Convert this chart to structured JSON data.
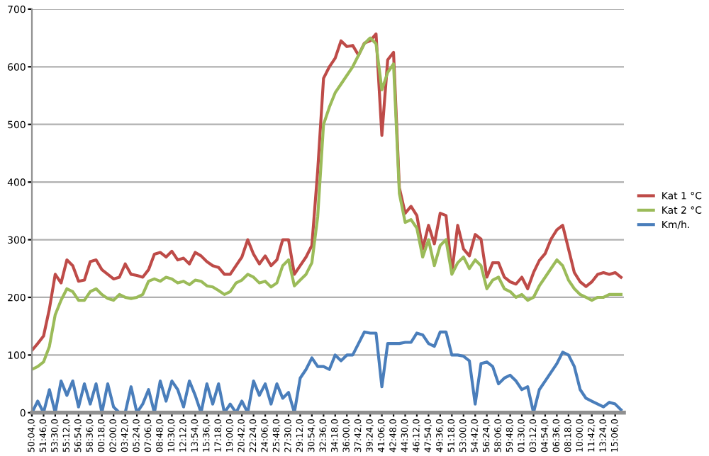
{
  "chart_data": {
    "type": "line",
    "categories": [
      "50:04,0",
      null,
      "51:46,0",
      null,
      "53:30,0",
      null,
      "55:12,0",
      null,
      "56:54,0",
      null,
      "58:36,0",
      null,
      "00:18,0",
      null,
      "02:00,0",
      null,
      "03:42,0",
      null,
      "05:24,0",
      null,
      "07:06,0",
      null,
      "08:48,0",
      null,
      "10:30,0",
      null,
      "12:12,0",
      null,
      "13:54,0",
      null,
      "15:36,0",
      null,
      "17:18,0",
      null,
      "19:00,0",
      null,
      "20:42,0",
      null,
      "22:24,0",
      null,
      "24:06,0",
      null,
      "25:48,0",
      null,
      "27:30,0",
      null,
      "29:12,0",
      null,
      "30:54,0",
      null,
      "32:36,0",
      null,
      "34:18,0",
      null,
      "36:00,0",
      null,
      "37:42,0",
      null,
      "39:24,0",
      null,
      "41:06,0",
      null,
      "42:48,0",
      null,
      "44:30,0",
      null,
      "46:12,0",
      null,
      "47:54,0",
      null,
      "49:36,0",
      null,
      "51:18,0",
      null,
      "53:00,0",
      null,
      "54:42,0",
      null,
      "56:24,0",
      null,
      "58:06,0",
      null,
      "59:48,0",
      null,
      "01:30,0",
      null,
      "03:12,0",
      null,
      "04:54,0",
      null,
      "06:36,0",
      null,
      "08:18,0",
      null,
      "10:00,0",
      null,
      "11:42,0",
      null,
      "13:24,0",
      null,
      "15:06,0",
      null
    ],
    "series": [
      {
        "name": "Kat 1 °C",
        "color": "#be4b48",
        "values": [
          108,
          120,
          133,
          180,
          240,
          225,
          265,
          255,
          228,
          230,
          262,
          265,
          248,
          240,
          232,
          235,
          258,
          240,
          238,
          235,
          248,
          275,
          278,
          270,
          280,
          265,
          268,
          258,
          278,
          272,
          262,
          255,
          252,
          240,
          240,
          255,
          270,
          300,
          275,
          258,
          272,
          255,
          265,
          300,
          300,
          240,
          255,
          270,
          290,
          420,
          580,
          600,
          615,
          645,
          635,
          637,
          620,
          641,
          645,
          657,
          481,
          612,
          625,
          390,
          346,
          358,
          342,
          284,
          325,
          293,
          346,
          342,
          243,
          325,
          284,
          272,
          309,
          301,
          235,
          260,
          260,
          235,
          227,
          223,
          235,
          215,
          243,
          264,
          276,
          301,
          317,
          325,
          284,
          243,
          227,
          219,
          227,
          240,
          243,
          240,
          243,
          235
        ]
      },
      {
        "name": "Kat 2 °C",
        "color": "#9bbb59",
        "values": [
          75,
          80,
          88,
          115,
          170,
          195,
          215,
          210,
          195,
          195,
          210,
          215,
          205,
          198,
          195,
          205,
          200,
          198,
          200,
          205,
          228,
          232,
          228,
          235,
          232,
          225,
          228,
          222,
          230,
          228,
          220,
          218,
          212,
          205,
          210,
          225,
          230,
          240,
          235,
          225,
          228,
          218,
          225,
          255,
          265,
          220,
          230,
          240,
          260,
          340,
          500,
          530,
          555,
          570,
          585,
          600,
          620,
          640,
          650,
          640,
          560,
          590,
          605,
          380,
          330,
          335,
          320,
          270,
          300,
          255,
          290,
          300,
          240,
          260,
          270,
          250,
          265,
          255,
          215,
          230,
          235,
          215,
          210,
          200,
          205,
          195,
          200,
          220,
          235,
          250,
          265,
          255,
          230,
          215,
          205,
          200,
          195,
          200,
          200,
          205,
          205,
          205
        ]
      },
      {
        "name": "Km/h.",
        "color": "#4a7ebb",
        "values": [
          0,
          20,
          0,
          40,
          0,
          55,
          30,
          55,
          10,
          50,
          15,
          50,
          0,
          50,
          10,
          0,
          0,
          45,
          0,
          15,
          40,
          0,
          55,
          20,
          55,
          40,
          10,
          55,
          30,
          0,
          50,
          15,
          50,
          0,
          15,
          0,
          20,
          0,
          55,
          30,
          50,
          15,
          50,
          25,
          35,
          0,
          60,
          75,
          95,
          80,
          80,
          75,
          100,
          90,
          100,
          100,
          120,
          140,
          138,
          138,
          45,
          120,
          120,
          120,
          122,
          122,
          138,
          135,
          120,
          115,
          140,
          140,
          100,
          100,
          98,
          90,
          15,
          85,
          88,
          80,
          50,
          60,
          65,
          55,
          40,
          45,
          0,
          40,
          55,
          70,
          85,
          105,
          100,
          80,
          40,
          25,
          20,
          15,
          10,
          18,
          15,
          5
        ]
      }
    ],
    "ylim": [
      0,
      700
    ],
    "yticks": [
      0,
      100,
      200,
      300,
      400,
      500,
      600,
      700
    ],
    "grid": "y",
    "legend": "right",
    "line_style": "solid",
    "marker": "none"
  }
}
